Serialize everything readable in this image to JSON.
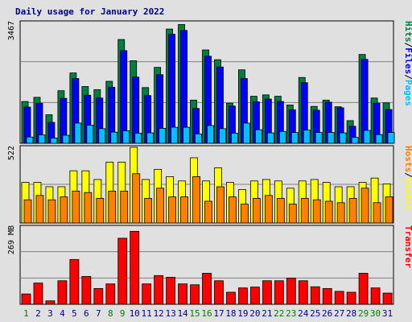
{
  "chart_data": {
    "title": "Daily usage for January 2022",
    "type": "bar",
    "days": [
      "1",
      "2",
      "3",
      "4",
      "5",
      "6",
      "7",
      "8",
      "9",
      "10",
      "11",
      "12",
      "13",
      "14",
      "15",
      "16",
      "17",
      "18",
      "19",
      "20",
      "21",
      "22",
      "23",
      "24",
      "25",
      "26",
      "27",
      "28",
      "29",
      "30",
      "31"
    ],
    "weekend_days": [
      1,
      8,
      9,
      15,
      16,
      22,
      23,
      29,
      30
    ],
    "panels": [
      {
        "id": "hits-files-pages",
        "ymax_label": "3467",
        "ymax": 3467,
        "side_label": [
          "Hits",
          "/",
          "Files",
          "/",
          "Pages"
        ],
        "side_label_colors": [
          "#008040",
          "#000000",
          "#0000ff",
          "#000000",
          "#00c0ff"
        ],
        "series": [
          {
            "name": "Hits",
            "color": "#008040",
            "values": [
              1200,
              1320,
              820,
              1510,
              2020,
              1630,
              1540,
              1780,
              2980,
              2370,
              1600,
              2180,
              3280,
              3410,
              1240,
              2680,
              2400,
              1150,
              2110,
              1350,
              1390,
              1350,
              1100,
              1890,
              1060,
              1240,
              1050,
              650,
              2550,
              1300,
              1160
            ]
          },
          {
            "name": "Files",
            "color": "#0000ff",
            "values": [
              1040,
              1150,
              600,
              1290,
              1860,
              1380,
              1300,
              1610,
              2660,
              1900,
              1370,
              1970,
              3130,
              3240,
              1000,
              2500,
              2190,
              1070,
              1860,
              1190,
              1270,
              1200,
              960,
              1740,
              950,
              1180,
              1020,
              490,
              2410,
              1150,
              970
            ]
          },
          {
            "name": "Pages",
            "color": "#00c0ff",
            "values": [
              180,
              240,
              150,
              230,
              580,
              520,
              420,
              320,
              360,
              290,
              300,
              430,
              460,
              460,
              270,
              510,
              420,
              290,
              580,
              390,
              300,
              340,
              310,
              380,
              310,
              310,
              300,
              170,
              370,
              250,
              310
            ]
          }
        ]
      },
      {
        "id": "hosts-visits",
        "ymax_label": "522",
        "ymax": 522,
        "side_label": [
          "Hosts",
          "/",
          "Visits"
        ],
        "side_label_colors": [
          "#ff8000",
          "#000000",
          "#ffff00"
        ],
        "series": [
          {
            "name": "Visits",
            "color": "#ffff00",
            "values": [
              280,
              280,
              250,
              250,
              360,
              360,
              300,
              420,
              420,
              522,
              300,
              370,
              320,
              290,
              450,
              290,
              380,
              280,
              230,
              290,
              300,
              290,
              240,
              290,
              300,
              280,
              250,
              250,
              280,
              310,
              270
            ]
          },
          {
            "name": "Hosts",
            "color": "#ff8000",
            "values": [
              160,
              190,
              160,
              180,
              220,
              210,
              170,
              220,
              220,
              340,
              170,
              240,
              180,
              180,
              320,
              150,
              250,
              180,
              130,
              170,
              190,
              170,
              130,
              170,
              160,
              150,
              140,
              170,
              240,
              140,
              180
            ]
          }
        ]
      },
      {
        "id": "transfer",
        "ymax_label": "269 MB",
        "ymax": 269,
        "side_label": [
          "Transfer"
        ],
        "side_label_colors": [
          "#ff0000"
        ],
        "series": [
          {
            "name": "Transfer",
            "color": "#ff0000",
            "values": [
              36,
              74,
              12,
              82,
              156,
              97,
              55,
              71,
              230,
              254,
              71,
              100,
              94,
              71,
              68,
              108,
              82,
              42,
              57,
              60,
              82,
              82,
              91,
              82,
              61,
              55,
              45,
              42,
              108,
              57,
              39
            ]
          }
        ]
      }
    ]
  }
}
